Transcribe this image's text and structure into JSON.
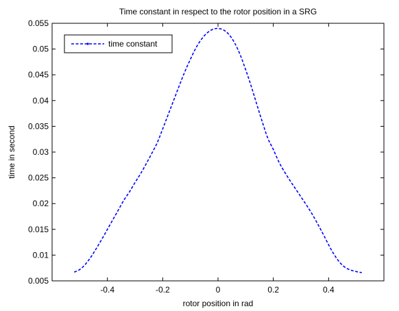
{
  "chart_data": {
    "type": "line",
    "title": "Time constant in respect to the rotor position in a SRG",
    "xlabel": "rotor position in rad",
    "ylabel": "time in second",
    "xlim": [
      -0.6,
      0.6
    ],
    "ylim": [
      0.005,
      0.055
    ],
    "xticks": [
      -0.4,
      -0.2,
      0,
      0.2,
      0.4
    ],
    "xtick_labels": [
      "-0.4",
      "-0.2",
      "0",
      "0.2",
      "0.4"
    ],
    "yticks": [
      0.005,
      0.01,
      0.015,
      0.02,
      0.025,
      0.03,
      0.035,
      0.04,
      0.045,
      0.05,
      0.055
    ],
    "ytick_labels": [
      "0.005",
      "0.01",
      "0.015",
      "0.02",
      "0.025",
      "0.03",
      "0.035",
      "0.04",
      "0.045",
      "0.05",
      "0.055"
    ],
    "grid": false,
    "legend_position": "top-left",
    "series": [
      {
        "name": "time constant",
        "color": "#0000ff",
        "line_style": "dashed",
        "x": [
          -0.52,
          -0.5,
          -0.48,
          -0.46,
          -0.44,
          -0.42,
          -0.4,
          -0.38,
          -0.36,
          -0.34,
          -0.32,
          -0.3,
          -0.28,
          -0.26,
          -0.24,
          -0.22,
          -0.2,
          -0.18,
          -0.16,
          -0.14,
          -0.12,
          -0.1,
          -0.08,
          -0.06,
          -0.04,
          -0.02,
          0,
          0.02,
          0.04,
          0.06,
          0.08,
          0.1,
          0.12,
          0.14,
          0.16,
          0.18,
          0.2,
          0.22,
          0.24,
          0.26,
          0.28,
          0.3,
          0.32,
          0.34,
          0.36,
          0.38,
          0.4,
          0.42,
          0.44,
          0.46,
          0.48,
          0.5,
          0.52
        ],
        "y": [
          0.0067,
          0.0072,
          0.0082,
          0.0096,
          0.0113,
          0.0131,
          0.015,
          0.0169,
          0.0188,
          0.0207,
          0.0223,
          0.0241,
          0.0258,
          0.0277,
          0.0297,
          0.0318,
          0.0345,
          0.0373,
          0.0401,
          0.0429,
          0.0456,
          0.048,
          0.0502,
          0.0519,
          0.0531,
          0.0538,
          0.054,
          0.0537,
          0.0528,
          0.0512,
          0.0489,
          0.046,
          0.0428,
          0.0393,
          0.0359,
          0.0327,
          0.0305,
          0.0281,
          0.0262,
          0.0245,
          0.0229,
          0.0213,
          0.0197,
          0.018,
          0.0161,
          0.0141,
          0.012,
          0.0101,
          0.0086,
          0.0076,
          0.0071,
          0.0068,
          0.0066
        ]
      }
    ]
  }
}
